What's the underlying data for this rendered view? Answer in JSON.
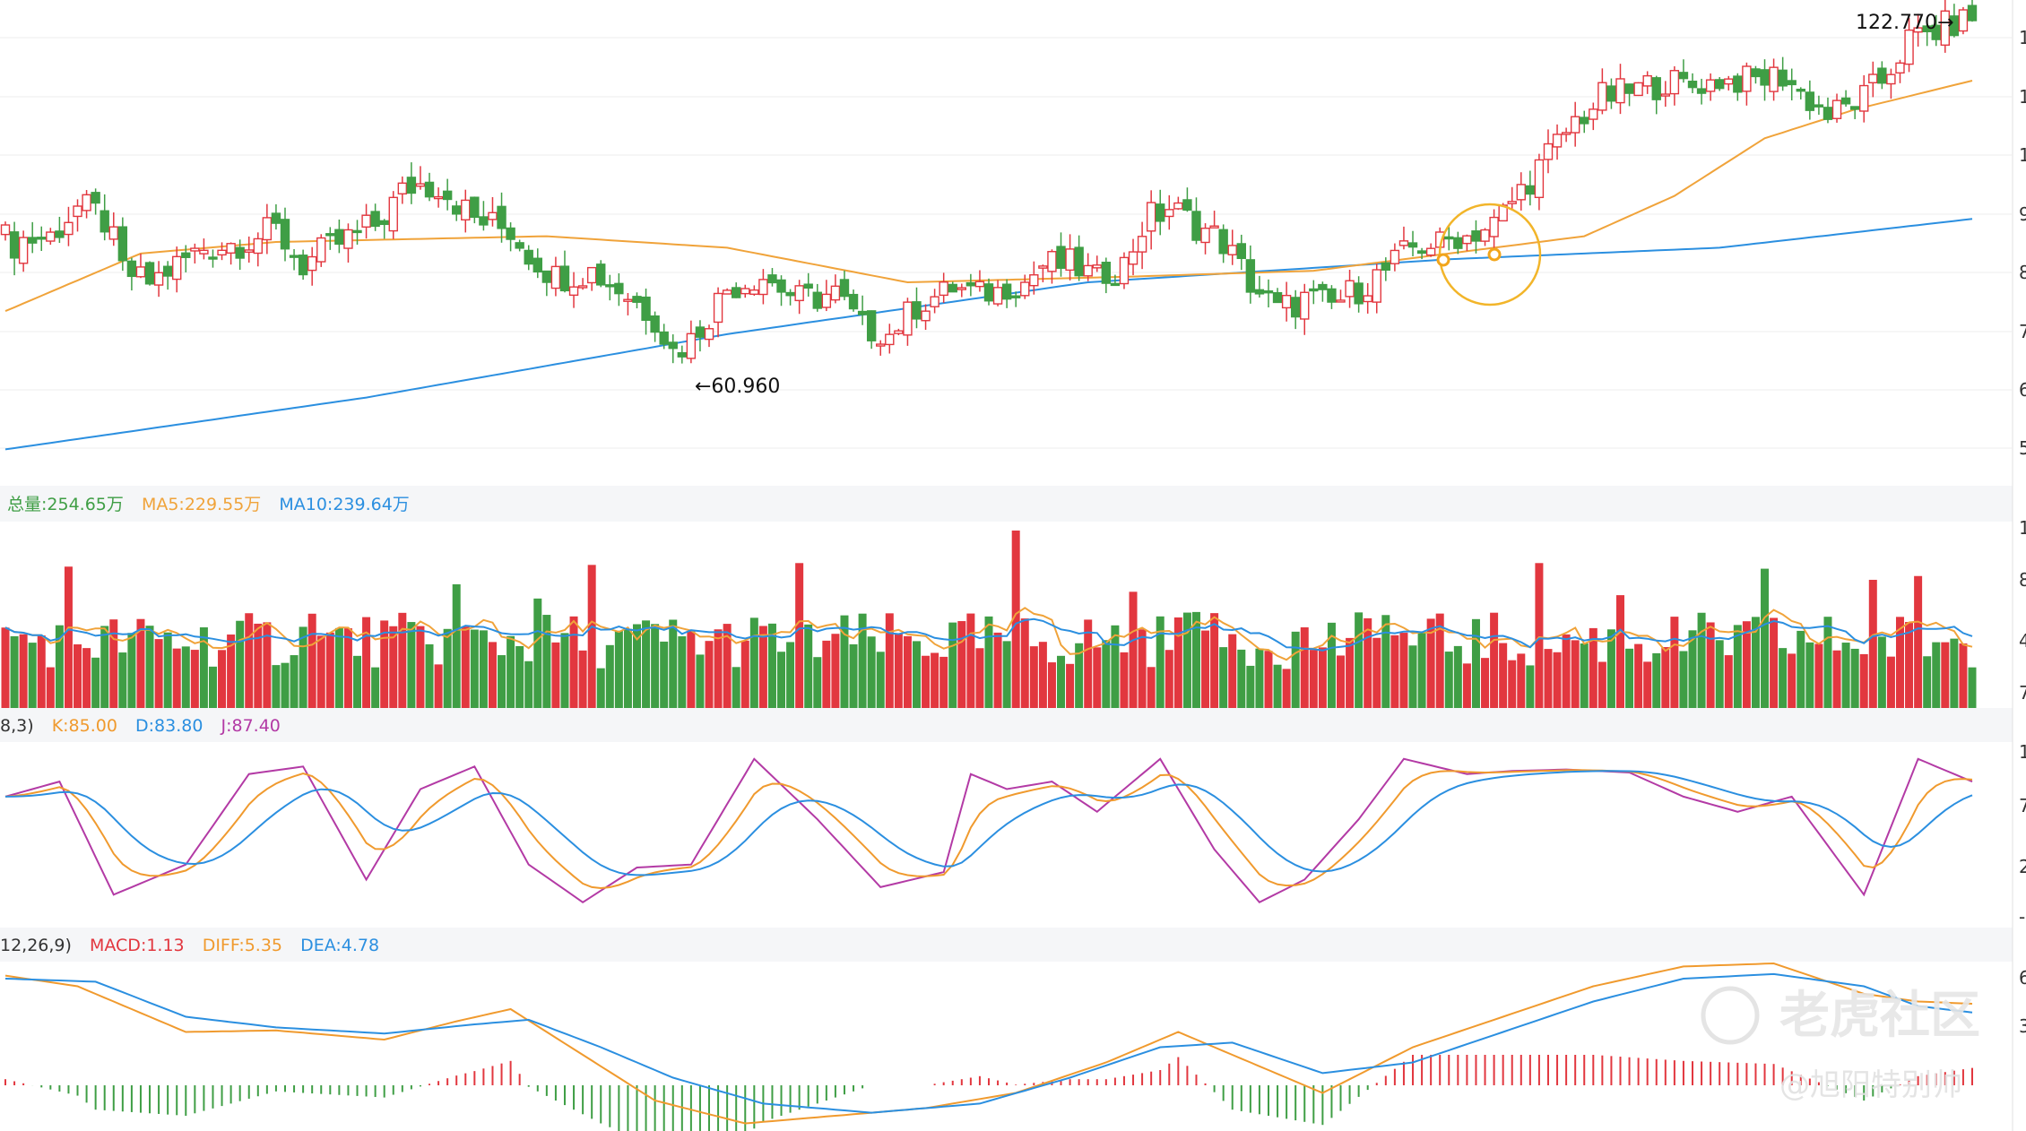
{
  "colors": {
    "up": "#e2373f",
    "down": "#3f9e45",
    "ma_price_short": "#f0a33a",
    "ma_price_long": "#2b8fe0",
    "k": "#f09a2e",
    "d": "#2b8fe0",
    "j": "#b33aa5",
    "grid": "#eeeeee",
    "panel_band": "#f5f6f8"
  },
  "price_panel": {
    "high_label": "122.770→",
    "low_label": "←60.960",
    "axis_ticks": [
      "1",
      "1",
      "1",
      "9",
      "8",
      "7",
      "6",
      "5"
    ]
  },
  "volume_panel": {
    "legend": {
      "total": "总量:254.65万",
      "ma5": "MA5:229.55万",
      "ma10": "MA10:239.64万"
    },
    "axis_ticks": [
      "1",
      "8",
      "4",
      "7"
    ]
  },
  "kdj_panel": {
    "legend": {
      "params": "8,3)",
      "k": "K:85.00",
      "d": "D:83.80",
      "j": "J:87.40"
    },
    "axis_ticks": [
      "1",
      "7",
      "2",
      "-"
    ]
  },
  "macd_panel": {
    "legend": {
      "params": "12,26,9)",
      "macd": "MACD:1.13",
      "diff": "DIFF:5.35",
      "dea": "DEA:4.78"
    },
    "axis_ticks": [
      "6",
      "3"
    ]
  },
  "watermark": {
    "brand": "老虎社区",
    "user": "@旭阳特别帅"
  },
  "chart_data": {
    "type": "candlestick",
    "price": {
      "ylim": [
        40,
        124
      ],
      "high": 122.77,
      "low": 60.96,
      "anchors": [
        [
          0,
          82,
          5
        ],
        [
          5,
          83,
          4
        ],
        [
          8,
          88,
          4
        ],
        [
          11,
          86,
          5
        ],
        [
          13,
          77,
          4
        ],
        [
          16,
          75,
          3
        ],
        [
          19,
          78,
          4
        ],
        [
          22,
          81,
          4
        ],
        [
          26,
          82,
          4
        ],
        [
          30,
          84,
          4
        ],
        [
          33,
          78,
          4
        ],
        [
          36,
          81,
          4
        ],
        [
          41,
          85,
          4
        ],
        [
          45,
          92,
          5
        ],
        [
          48,
          92,
          4
        ],
        [
          52,
          86,
          4
        ],
        [
          56,
          84,
          4
        ],
        [
          58,
          80,
          4
        ],
        [
          61,
          76,
          4
        ],
        [
          65,
          77,
          4
        ],
        [
          68,
          74,
          4
        ],
        [
          72,
          69,
          4
        ],
        [
          74,
          63,
          4
        ],
        [
          76,
          65,
          4
        ],
        [
          80,
          74,
          4
        ],
        [
          84,
          76,
          3
        ],
        [
          88,
          72,
          4
        ],
        [
          92,
          73,
          4
        ],
        [
          95,
          67,
          4
        ],
        [
          98,
          66,
          3
        ],
        [
          101,
          71,
          4
        ],
        [
          105,
          74,
          3
        ],
        [
          109,
          73,
          3
        ],
        [
          113,
          75,
          3
        ],
        [
          115,
          78,
          4
        ],
        [
          118,
          78,
          4
        ],
        [
          121,
          76,
          3
        ],
        [
          124,
          78,
          4
        ],
        [
          126,
          85,
          5
        ],
        [
          129,
          88,
          4
        ],
        [
          132,
          85,
          4
        ],
        [
          135,
          82,
          4
        ],
        [
          138,
          75,
          4
        ],
        [
          141,
          70,
          4
        ],
        [
          144,
          72,
          4
        ],
        [
          147,
          71,
          4
        ],
        [
          150,
          74,
          4
        ],
        [
          153,
          77,
          4
        ],
        [
          156,
          81,
          4
        ],
        [
          159,
          82,
          3
        ],
        [
          162,
          83,
          3
        ],
        [
          165,
          85,
          4
        ],
        [
          168,
          91,
          4
        ],
        [
          171,
          97,
          4
        ],
        [
          174,
          103,
          4
        ],
        [
          177,
          107,
          4
        ],
        [
          180,
          108,
          4
        ],
        [
          184,
          110,
          4
        ],
        [
          187,
          109,
          3
        ],
        [
          190,
          110,
          3
        ],
        [
          194,
          110,
          4
        ],
        [
          197,
          111,
          4
        ],
        [
          199,
          108,
          4
        ],
        [
          202,
          104,
          4
        ],
        [
          205,
          106,
          3
        ],
        [
          208,
          110,
          4
        ],
        [
          211,
          117,
          4
        ],
        [
          213,
          118,
          4
        ],
        [
          216,
          120,
          4
        ],
        [
          218,
          121,
          3
        ]
      ],
      "ma_short_anchors": [
        [
          0,
          70
        ],
        [
          15,
          80
        ],
        [
          30,
          82
        ],
        [
          60,
          83
        ],
        [
          80,
          81
        ],
        [
          100,
          75
        ],
        [
          125,
          76
        ],
        [
          145,
          77
        ],
        [
          160,
          80
        ],
        [
          175,
          83
        ],
        [
          185,
          90
        ],
        [
          195,
          100
        ],
        [
          205,
          105
        ],
        [
          218,
          110
        ]
      ],
      "ma_long_anchors": [
        [
          0,
          46
        ],
        [
          40,
          55
        ],
        [
          80,
          66
        ],
        [
          120,
          75
        ],
        [
          160,
          79
        ],
        [
          190,
          81
        ],
        [
          218,
          86
        ]
      ]
    },
    "volume": {
      "ylim": [
        0,
        10
      ],
      "series": [
        "total",
        "MA5",
        "MA10"
      ]
    },
    "kdj": {
      "ylim": [
        -10,
        110
      ],
      "anchors": [
        [
          0,
          75
        ],
        [
          6,
          85
        ],
        [
          12,
          10
        ],
        [
          20,
          30
        ],
        [
          27,
          90
        ],
        [
          33,
          95
        ],
        [
          40,
          20
        ],
        [
          46,
          80
        ],
        [
          52,
          95
        ],
        [
          58,
          30
        ],
        [
          64,
          5
        ],
        [
          70,
          28
        ],
        [
          76,
          30
        ],
        [
          83,
          100
        ],
        [
          90,
          60
        ],
        [
          97,
          15
        ],
        [
          104,
          25
        ],
        [
          107,
          90
        ],
        [
          111,
          80
        ],
        [
          116,
          85
        ],
        [
          121,
          65
        ],
        [
          128,
          100
        ],
        [
          134,
          40
        ],
        [
          139,
          5
        ],
        [
          144,
          20
        ],
        [
          150,
          60
        ],
        [
          155,
          100
        ],
        [
          162,
          90
        ],
        [
          167,
          92
        ],
        [
          173,
          93
        ],
        [
          180,
          91
        ],
        [
          186,
          75
        ],
        [
          192,
          65
        ],
        [
          198,
          75
        ],
        [
          206,
          10
        ],
        [
          212,
          100
        ],
        [
          218,
          85
        ]
      ]
    },
    "macd": {
      "ylim": [
        -3,
        8
      ],
      "diff_anchors": [
        [
          0,
          7.2
        ],
        [
          8,
          6.5
        ],
        [
          14,
          5
        ],
        [
          20,
          3.5
        ],
        [
          30,
          3.6
        ],
        [
          42,
          3
        ],
        [
          50,
          4.2
        ],
        [
          56,
          5
        ],
        [
          64,
          2
        ],
        [
          72,
          -1
        ],
        [
          82,
          -2.5
        ],
        [
          92,
          -2
        ],
        [
          102,
          -1.5
        ],
        [
          112,
          -0.5
        ],
        [
          122,
          1.5
        ],
        [
          130,
          3.5
        ],
        [
          138,
          1.5
        ],
        [
          146,
          -0.5
        ],
        [
          156,
          2.5
        ],
        [
          166,
          4.5
        ],
        [
          176,
          6.5
        ],
        [
          186,
          7.8
        ],
        [
          196,
          8
        ],
        [
          206,
          6
        ],
        [
          212,
          5.5
        ],
        [
          218,
          5.35
        ]
      ],
      "dea_anchors": [
        [
          0,
          7
        ],
        [
          10,
          6.8
        ],
        [
          20,
          4.5
        ],
        [
          30,
          3.8
        ],
        [
          42,
          3.4
        ],
        [
          52,
          4
        ],
        [
          58,
          4.3
        ],
        [
          66,
          2.5
        ],
        [
          74,
          0.5
        ],
        [
          84,
          -1.2
        ],
        [
          96,
          -1.8
        ],
        [
          108,
          -1.2
        ],
        [
          118,
          0.5
        ],
        [
          128,
          2.5
        ],
        [
          136,
          2.8
        ],
        [
          146,
          0.8
        ],
        [
          156,
          1.5
        ],
        [
          166,
          3.5
        ],
        [
          176,
          5.5
        ],
        [
          186,
          7
        ],
        [
          196,
          7.3
        ],
        [
          206,
          6.5
        ],
        [
          212,
          5.2
        ],
        [
          218,
          4.78
        ]
      ]
    }
  }
}
